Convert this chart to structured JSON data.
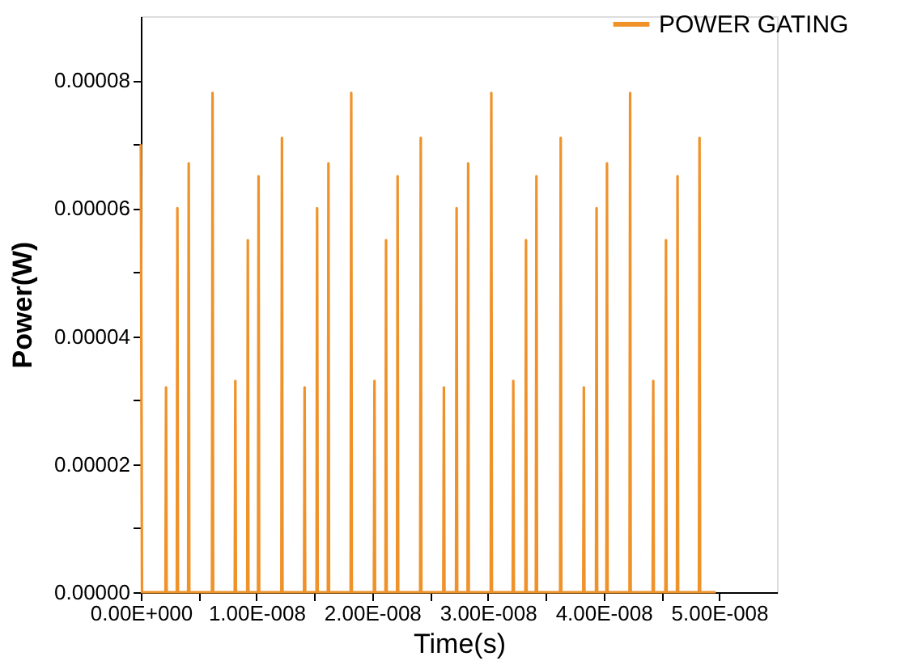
{
  "chart_data": {
    "type": "line",
    "xlabel": "Time(s)",
    "ylabel": "Power(W)",
    "series": [
      {
        "name": "POWER GATING",
        "color": "#f0922a",
        "x": [
          0,
          1e-10,
          1e-09,
          2.13e-09,
          2.18e-09,
          2.23e-09,
          3.11e-09,
          3.16e-09,
          3.21e-09,
          4.09e-09,
          4.14e-09,
          4.19e-09,
          6.15e-09,
          6.2e-09,
          6.25e-09,
          8.12e-09,
          8.17e-09,
          8.22e-09,
          9.2e-09,
          9.25e-09,
          9.3e-09,
          1.013e-08,
          1.018e-08,
          1.023e-08,
          1.215e-08,
          1.22e-08,
          1.225e-08,
          1.411e-08,
          1.416e-08,
          1.421e-08,
          1.519e-08,
          1.524e-08,
          1.529e-08,
          1.617e-08,
          1.622e-08,
          1.627e-08,
          1.814e-08,
          1.819e-08,
          1.824e-08,
          2.015e-08,
          2.02e-08,
          2.025e-08,
          2.115e-08,
          2.12e-08,
          2.125e-08,
          2.215e-08,
          2.22e-08,
          2.225e-08,
          2.415e-08,
          2.42e-08,
          2.425e-08,
          2.615e-08,
          2.62e-08,
          2.625e-08,
          2.725e-08,
          2.73e-08,
          2.735e-08,
          2.825e-08,
          2.83e-08,
          2.835e-08,
          3.025e-08,
          3.03e-08,
          3.035e-08,
          3.215e-08,
          3.22e-08,
          3.225e-08,
          3.325e-08,
          3.33e-08,
          3.335e-08,
          3.415e-08,
          3.42e-08,
          3.425e-08,
          3.625e-08,
          3.63e-08,
          3.635e-08,
          3.825e-08,
          3.83e-08,
          3.835e-08,
          3.935e-08,
          3.94e-08,
          3.945e-08,
          4.025e-08,
          4.03e-08,
          4.035e-08,
          4.225e-08,
          4.23e-08,
          4.235e-08,
          4.425e-08,
          4.43e-08,
          4.435e-08,
          4.535e-08,
          4.54e-08,
          4.545e-08,
          4.635e-08,
          4.64e-08,
          4.645e-08,
          4.825e-08,
          4.83e-08,
          4.835e-08,
          4.97e-08
        ],
        "values": [
          7e-05,
          0,
          0,
          0,
          3.2e-05,
          0,
          0,
          6e-05,
          0,
          0,
          6.7e-05,
          0,
          0,
          7.8e-05,
          0,
          0,
          3.3e-05,
          0,
          0,
          5.5e-05,
          0,
          0,
          6.5e-05,
          0,
          0,
          7.1e-05,
          0,
          0,
          3.2e-05,
          0,
          0,
          6e-05,
          0,
          0,
          6.7e-05,
          0,
          0,
          7.8e-05,
          0,
          0,
          3.3e-05,
          0,
          0,
          5.5e-05,
          0,
          0,
          6.5e-05,
          0,
          0,
          7.1e-05,
          0,
          0,
          3.2e-05,
          0,
          0,
          6e-05,
          0,
          0,
          6.7e-05,
          0,
          0,
          7.8e-05,
          0,
          0,
          3.3e-05,
          0,
          0,
          5.5e-05,
          0,
          0,
          6.5e-05,
          0,
          0,
          7.1e-05,
          0,
          0,
          3.2e-05,
          0,
          0,
          6e-05,
          0,
          0,
          6.7e-05,
          0,
          0,
          7.8e-05,
          0,
          0,
          3.3e-05,
          0,
          0,
          5.5e-05,
          0,
          0,
          6.5e-05,
          0,
          0,
          7.1e-05,
          0,
          0
        ]
      }
    ],
    "xlim": [
      0,
      5.5e-08
    ],
    "xticks": [
      {
        "value": 0,
        "label": "0.00E+000"
      },
      {
        "value": 5e-09,
        "label": null
      },
      {
        "value": 1e-08,
        "label": "1.00E-008"
      },
      {
        "value": 1.5e-08,
        "label": null
      },
      {
        "value": 2e-08,
        "label": "2.00E-008"
      },
      {
        "value": 2.5e-08,
        "label": null
      },
      {
        "value": 3e-08,
        "label": "3.00E-008"
      },
      {
        "value": 3.5e-08,
        "label": null
      },
      {
        "value": 4e-08,
        "label": "4.00E-008"
      },
      {
        "value": 4.5e-08,
        "label": null
      },
      {
        "value": 5e-08,
        "label": "5.00E-008"
      }
    ],
    "ylim": [
      0,
      9e-05
    ],
    "yticks": [
      {
        "value": 0,
        "label": "0.00000"
      },
      {
        "value": 1e-05,
        "label": null
      },
      {
        "value": 2e-05,
        "label": "0.00002"
      },
      {
        "value": 3e-05,
        "label": null
      },
      {
        "value": 4e-05,
        "label": "0.00004"
      },
      {
        "value": 5e-05,
        "label": null
      },
      {
        "value": 6e-05,
        "label": "0.00006"
      },
      {
        "value": 7e-05,
        "label": null
      },
      {
        "value": 8e-05,
        "label": "0.00008"
      }
    ],
    "grid": false,
    "legend": "top right",
    "marker": "none",
    "line_style": "solid"
  }
}
